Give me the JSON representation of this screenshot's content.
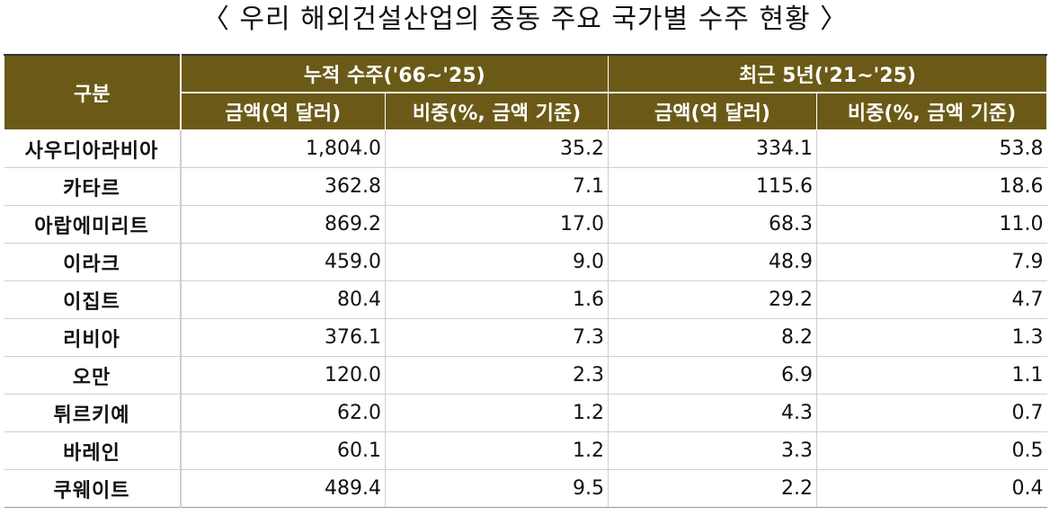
{
  "title": "〈 우리 해외건설산업의 중동 주요 국가별 수주 현황 〉",
  "table": {
    "corner": "구분",
    "group1": "누적 수주('66~'25)",
    "group2": "최근 5년('21~'25)",
    "sub": {
      "amount1": "금액(억 달러)",
      "share1": "비중(%, 금액 기준)",
      "amount2": "금액(억 달러)",
      "share2": "비중(%, 금액 기준)"
    },
    "rows": [
      {
        "name": "사우디아라비아",
        "c1": "1,804.0",
        "c2": "35.2",
        "c3": "334.1",
        "c4": "53.8"
      },
      {
        "name": "카타르",
        "c1": "362.8",
        "c2": "7.1",
        "c3": "115.6",
        "c4": "18.6"
      },
      {
        "name": "아랍에미리트",
        "c1": "869.2",
        "c2": "17.0",
        "c3": "68.3",
        "c4": "11.0"
      },
      {
        "name": "이라크",
        "c1": "459.0",
        "c2": "9.0",
        "c3": "48.9",
        "c4": "7.9"
      },
      {
        "name": "이집트",
        "c1": "80.4",
        "c2": "1.6",
        "c3": "29.2",
        "c4": "4.7"
      },
      {
        "name": "리비아",
        "c1": "376.1",
        "c2": "7.3",
        "c3": "8.2",
        "c4": "1.3"
      },
      {
        "name": "오만",
        "c1": "120.0",
        "c2": "2.3",
        "c3": "6.9",
        "c4": "1.1"
      },
      {
        "name": "튀르키예",
        "c1": "62.0",
        "c2": "1.2",
        "c3": "4.3",
        "c4": "0.7"
      },
      {
        "name": "바레인",
        "c1": "60.1",
        "c2": "1.2",
        "c3": "3.3",
        "c4": "0.5"
      },
      {
        "name": "쿠웨이트",
        "c1": "489.4",
        "c2": "9.5",
        "c3": "2.2",
        "c4": "0.4"
      }
    ]
  },
  "colors": {
    "header_bg": "#6b5a17",
    "header_text": "#ffffff"
  }
}
